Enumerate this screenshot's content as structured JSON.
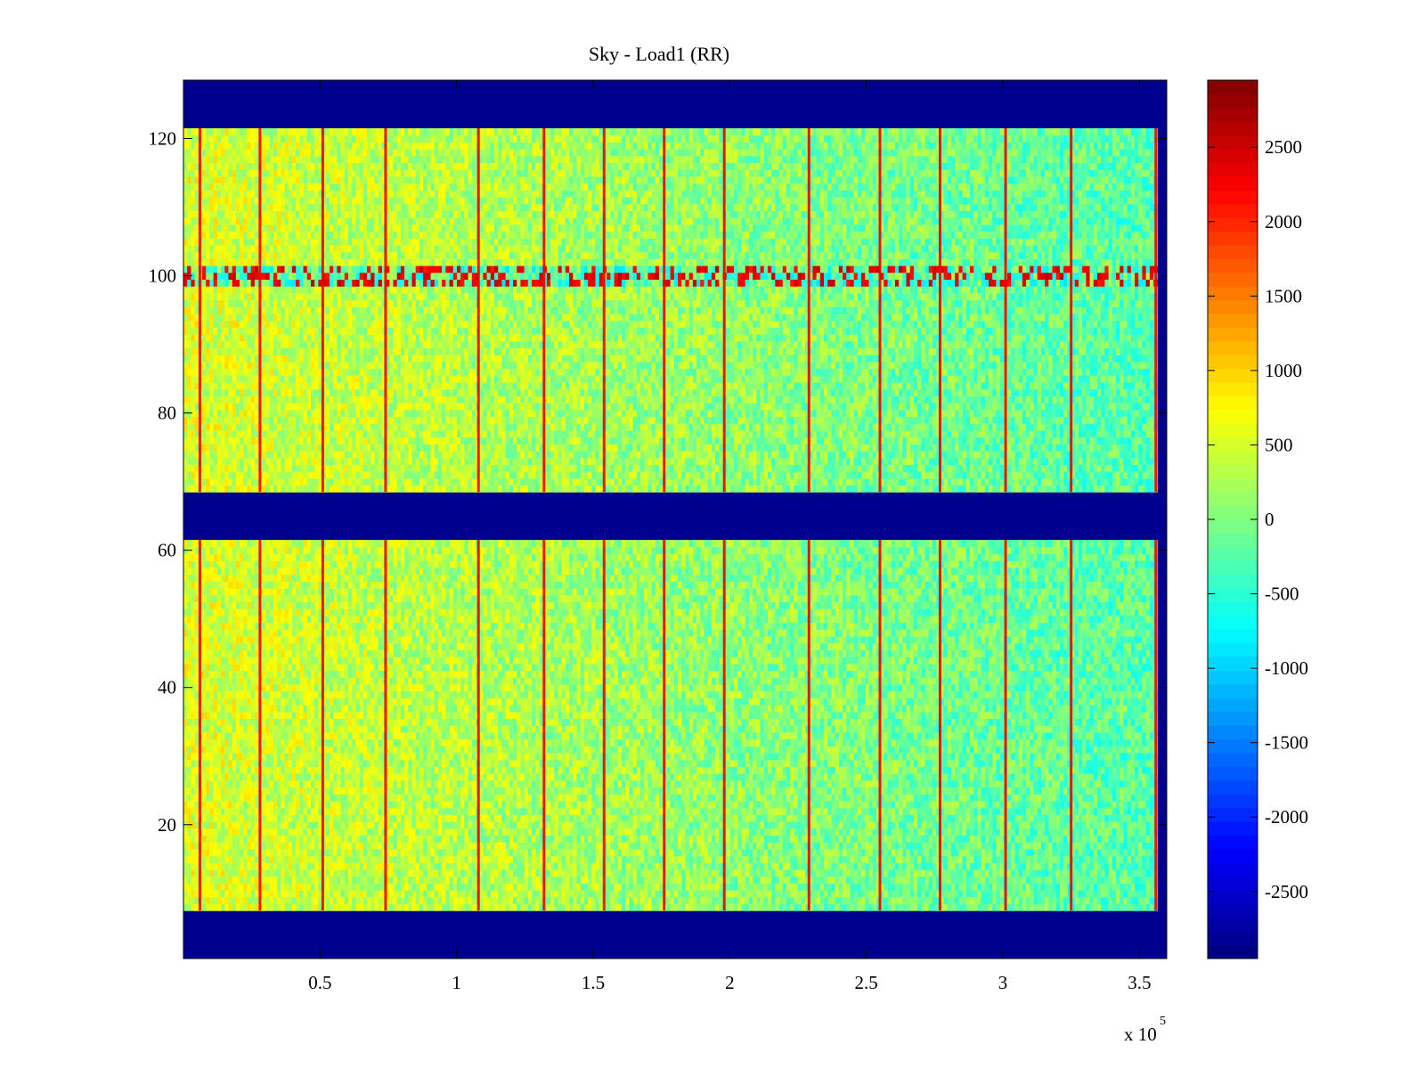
{
  "chart_data": {
    "type": "heatmap",
    "title": "Sky - Load1 (RR)",
    "xlabel": "",
    "ylabel": "",
    "x_multiplier_label": "x 10",
    "x_multiplier_exponent": "5",
    "xlim": [
      0,
      3.6
    ],
    "ylim": [
      0.5,
      128.5
    ],
    "grid": false,
    "colormap": "jet",
    "x_ticks": [
      0.5,
      1,
      1.5,
      2,
      2.5,
      3,
      3.5
    ],
    "x_tick_labels": [
      "0.5",
      "1",
      "1.5",
      "2",
      "2.5",
      "3",
      "3.5"
    ],
    "y_ticks": [
      20,
      40,
      60,
      80,
      100,
      120
    ],
    "y_tick_labels": [
      "20",
      "40",
      "60",
      "80",
      "100",
      "120"
    ],
    "colorbar": {
      "range": [
        -2950,
        2950
      ],
      "ticks": [
        -2500,
        -2000,
        -1500,
        -1000,
        -500,
        0,
        500,
        1000,
        1500,
        2000,
        2500
      ],
      "tick_labels": [
        "-2500",
        "-2000",
        "-1500",
        "-1000",
        "-500",
        "0",
        "500",
        "1000",
        "1500",
        "2000",
        "2500"
      ]
    },
    "masked_rows": [
      [
        1,
        7
      ],
      [
        62,
        68
      ],
      [
        122,
        128
      ]
    ],
    "masked_value": -2950,
    "data_x_end": 3.565,
    "background_level_start": 550,
    "background_level_end": -250,
    "spike_columns_x": [
      0.06,
      0.28,
      0.51,
      0.74,
      1.08,
      1.32,
      1.54,
      1.76,
      1.98,
      2.29,
      2.55,
      2.77,
      3.01,
      3.25,
      3.56
    ],
    "spike_value": 2300,
    "rfi_rows": [
      99,
      100,
      101
    ],
    "rfi_value": 2600
  }
}
